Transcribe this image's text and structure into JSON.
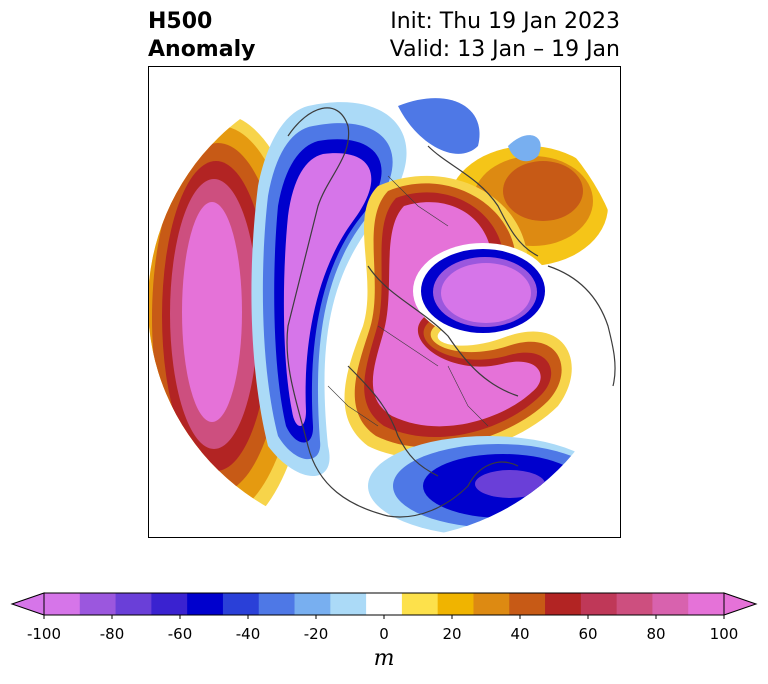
{
  "title": {
    "left_line1": "H500",
    "left_line2": "Anomaly",
    "right_line1": "Init: Thu 19 Jan 2023",
    "right_line2": "Valid: 13 Jan – 19 Jan"
  },
  "map": {
    "projection": "north-polar-stereographic",
    "variable": "500 hPa geopotential height anomaly",
    "features": [
      {
        "type": "ridge",
        "region": "North Pacific / Gulf of Alaska",
        "peak_anomaly_m": 100
      },
      {
        "type": "trough",
        "region": "Western North America to Alaska",
        "peak_anomaly_m": -100
      },
      {
        "type": "ridge",
        "region": "Eastern North America to Arctic",
        "peak_anomaly_m": 100
      },
      {
        "type": "trough",
        "region": "Northern Europe / Scandinavia",
        "peak_anomaly_m": -100
      },
      {
        "type": "trough",
        "region": "Western Atlantic / Southeast US coast",
        "peak_anomaly_m": -80
      }
    ]
  },
  "colorbar": {
    "units": "m",
    "tick_labels": [
      "-100",
      "-80",
      "-60",
      "-40",
      "-20",
      "0",
      "20",
      "40",
      "60",
      "80",
      "100"
    ],
    "tick_values": [
      -100,
      -80,
      -60,
      -40,
      -20,
      0,
      20,
      40,
      60,
      80,
      100
    ],
    "colors": [
      "#d675e9",
      "#9b57de",
      "#6a3fd8",
      "#3a22d0",
      "#0000cd",
      "#2a40d8",
      "#4e78e6",
      "#78aff0",
      "#abdaf7",
      "#ffffff",
      "#fde14b",
      "#f0b400",
      "#dd8a12",
      "#c75a16",
      "#b22423",
      "#bf3858",
      "#cd4f7f",
      "#d862ae",
      "#e572d8"
    ],
    "extend": "both"
  }
}
